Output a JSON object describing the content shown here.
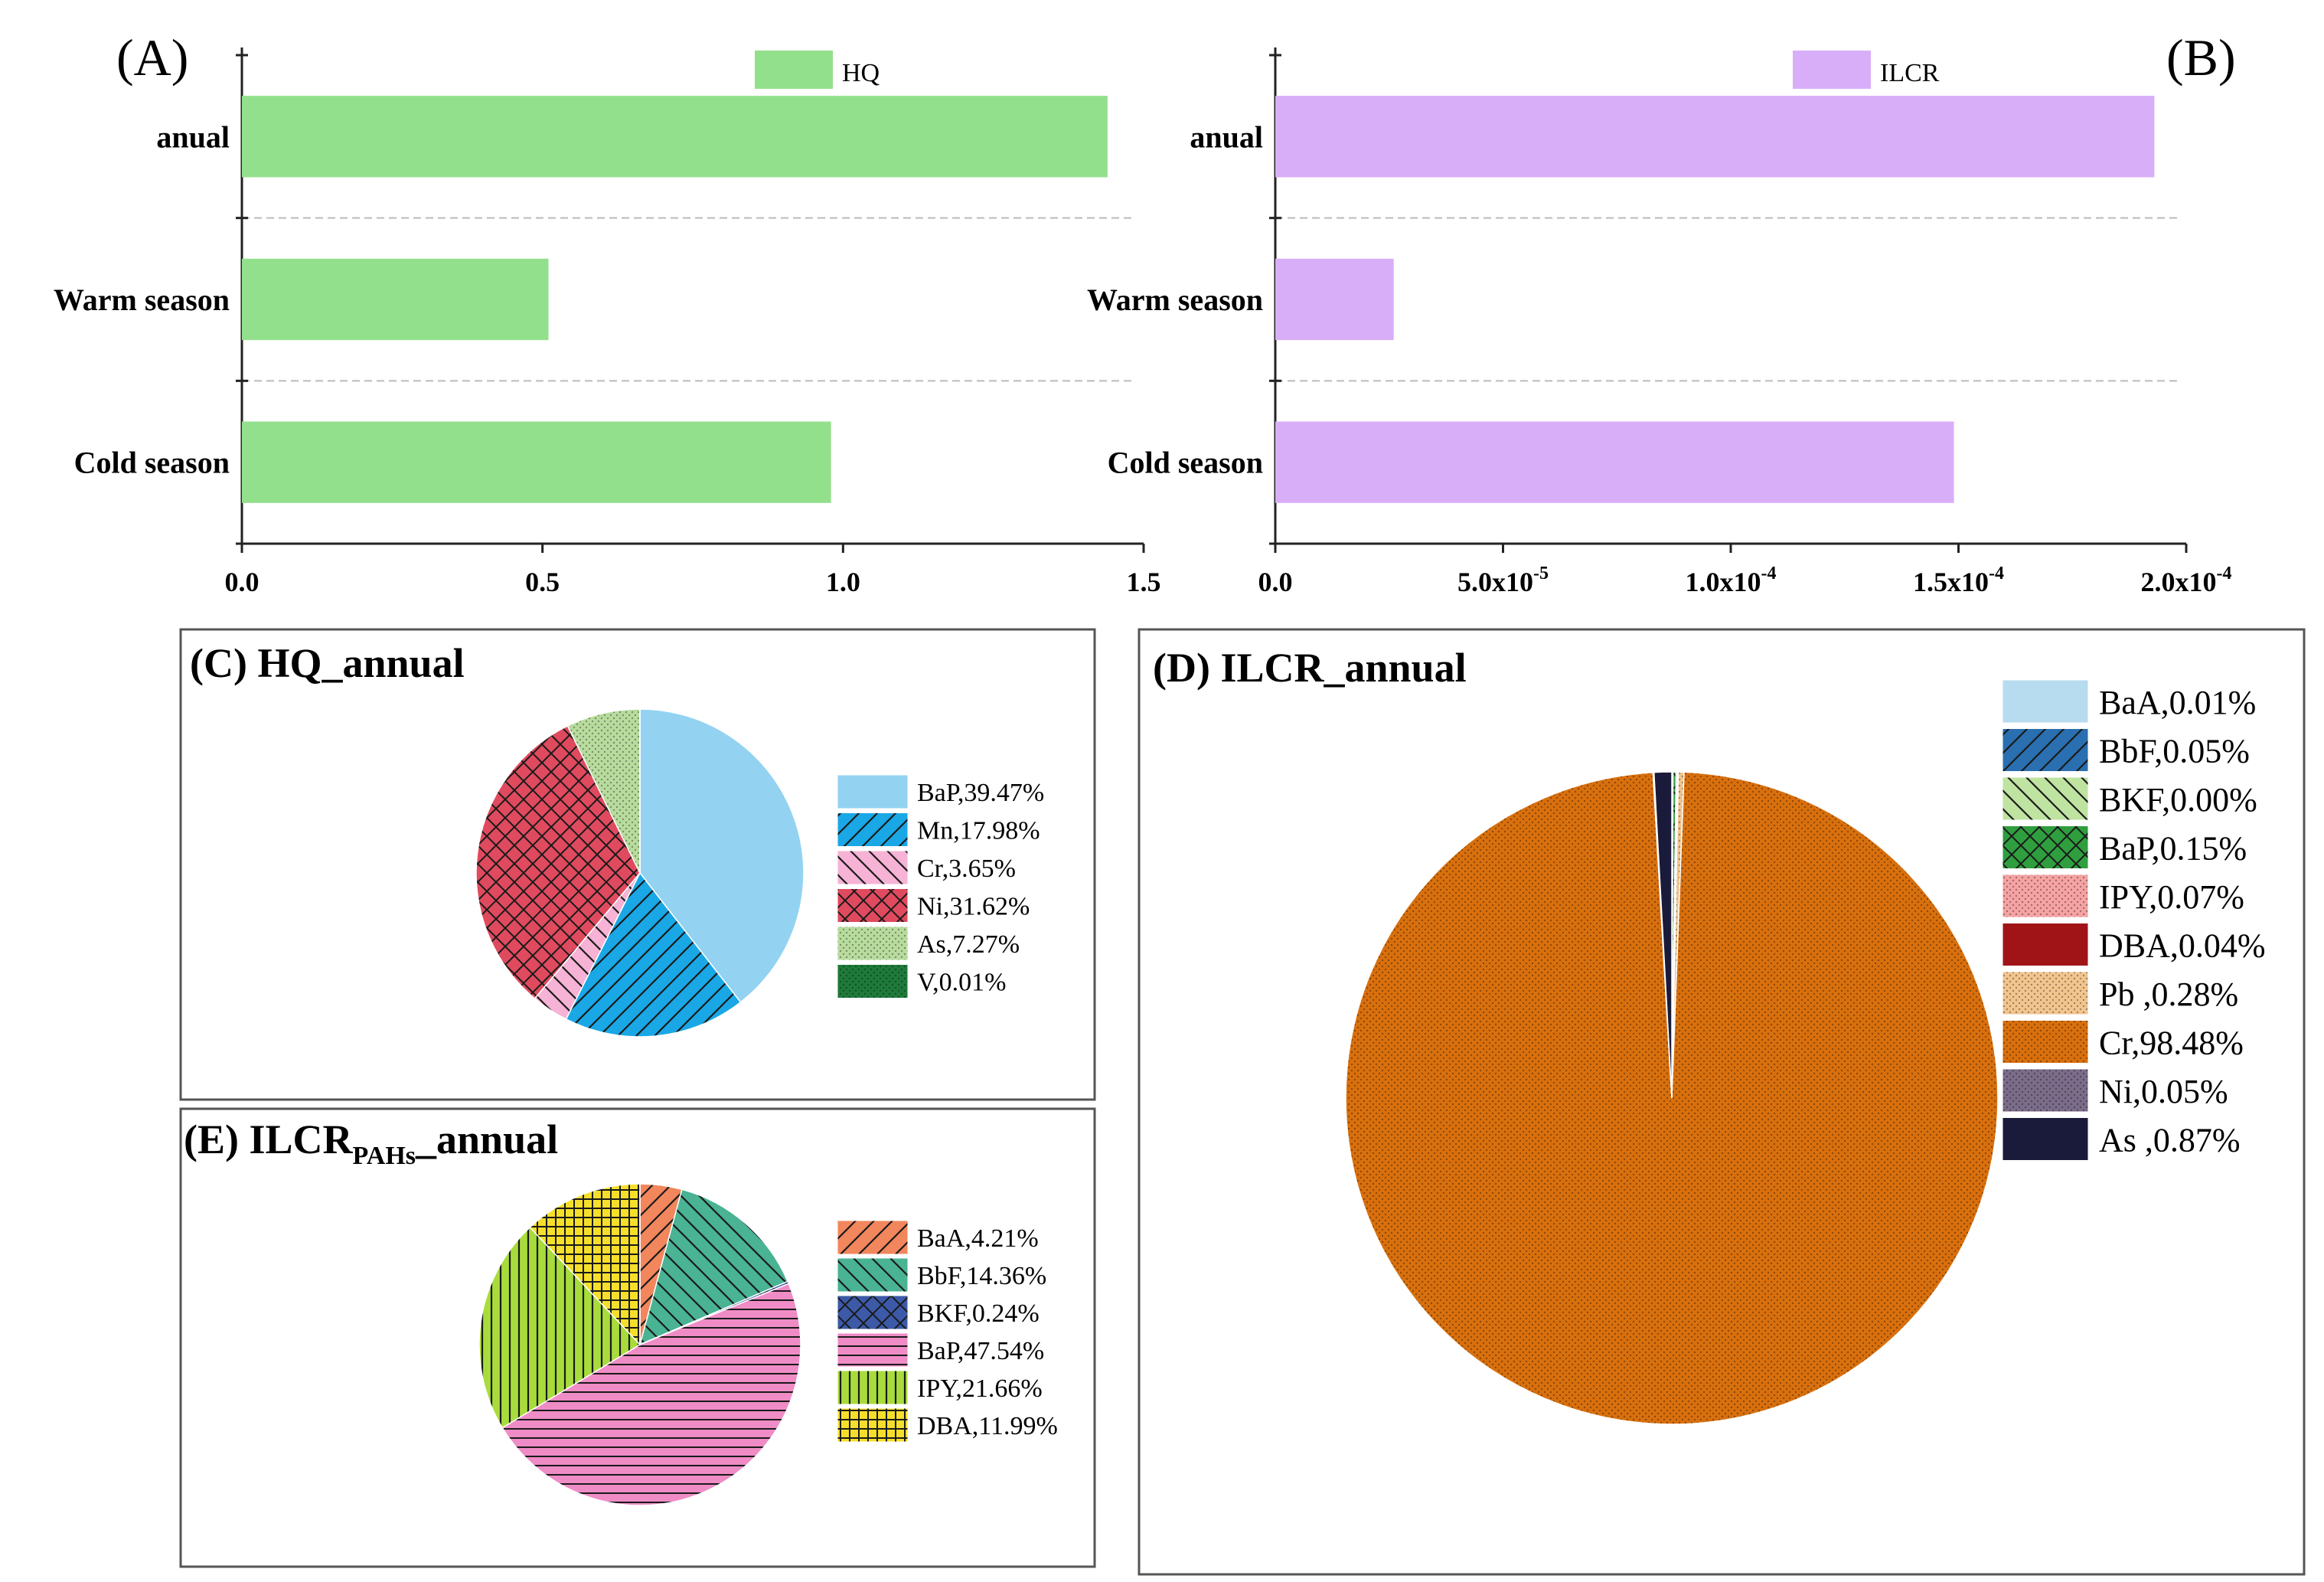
{
  "chart_data": [
    {
      "id": "A",
      "type": "bar",
      "orientation": "horizontal",
      "panel_label": "(A)",
      "legend": "HQ",
      "categories": [
        "anual",
        "Warm season",
        "Cold season"
      ],
      "values": [
        1.44,
        0.51,
        0.98
      ],
      "xlim": [
        0,
        1.5
      ],
      "ticks": [
        0,
        0.5,
        1.0,
        1.5
      ],
      "tick_labels": [
        "0.0",
        "0.5",
        "1.0",
        "1.5"
      ],
      "color": "#93e08c"
    },
    {
      "id": "B",
      "type": "bar",
      "orientation": "horizontal",
      "panel_label": "(B)",
      "legend": "ILCR",
      "categories": [
        "anual",
        "Warm season",
        "Cold season"
      ],
      "values": [
        0.000193,
        2.6e-05,
        0.000149
      ],
      "xlim": [
        0,
        0.0002
      ],
      "ticks": [
        0,
        5e-05,
        0.0001,
        0.00015,
        0.0002
      ],
      "tick_labels": [
        "0.0",
        "5.0x10",
        "1.0x10",
        "1.5x10",
        "2.0x10"
      ],
      "tick_exponents": [
        "",
        "-5",
        "-4",
        "-4",
        "-4"
      ],
      "color": "#d9aef9"
    },
    {
      "id": "C",
      "type": "pie",
      "title": "(C) HQ_annual",
      "slices": [
        {
          "name": "BaP",
          "value": 39.47,
          "label": "BaP,39.47%",
          "color": "#93d3f1",
          "pattern": "none"
        },
        {
          "name": "Mn",
          "value": 17.98,
          "label": "Mn,17.98%",
          "color": "#1aa7e6",
          "pattern": "diag-r"
        },
        {
          "name": "Cr",
          "value": 3.65,
          "label": "Cr,3.65%",
          "color": "#f6b3d5",
          "pattern": "diag-l"
        },
        {
          "name": "Ni",
          "value": 31.62,
          "label": "Ni,31.62%",
          "color": "#e04a5e",
          "pattern": "cross"
        },
        {
          "name": "As",
          "value": 7.27,
          "label": "As,7.27%",
          "color": "#b8dc9e",
          "pattern": "dots"
        },
        {
          "name": "V",
          "value": 0.01,
          "label": "V,0.01%",
          "color": "#1e7a3a",
          "pattern": "dots"
        }
      ]
    },
    {
      "id": "D",
      "type": "pie",
      "title": "(D) ILCR_annual",
      "slices": [
        {
          "name": "BaA",
          "value": 0.01,
          "label": "BaA,0.01%",
          "color": "#b7dbef",
          "pattern": "none"
        },
        {
          "name": "BbF",
          "value": 0.05,
          "label": "BbF,0.05%",
          "color": "#2a6fb0",
          "pattern": "diag-r"
        },
        {
          "name": "BKF",
          "value": 0.0,
          "label": "BKF,0.00%",
          "color": "#bfe3a1",
          "pattern": "diag-l"
        },
        {
          "name": "BaP",
          "value": 0.15,
          "label": "BaP,0.15%",
          "color": "#2f9e3f",
          "pattern": "cross"
        },
        {
          "name": "IPY",
          "value": 0.07,
          "label": "IPY,0.07%",
          "color": "#f6a3a3",
          "pattern": "dots"
        },
        {
          "name": "DBA",
          "value": 0.04,
          "label": "DBA,0.04%",
          "color": "#a01418",
          "pattern": "none"
        },
        {
          "name": "Pb",
          "value": 0.28,
          "label": "Pb ,0.28%",
          "color": "#f3c58e",
          "pattern": "dots"
        },
        {
          "name": "Cr",
          "value": 98.48,
          "label": "Cr,98.48%",
          "color": "#d9700d",
          "pattern": "dots"
        },
        {
          "name": "Ni",
          "value": 0.05,
          "label": "Ni,0.05%",
          "color": "#7b6d8a",
          "pattern": "dots"
        },
        {
          "name": "As",
          "value": 0.87,
          "label": "As ,0.87%",
          "color": "#1a1a3a",
          "pattern": "none"
        }
      ]
    },
    {
      "id": "E",
      "type": "pie",
      "title": "(E) ILCR",
      "title_subscript": "PAHs",
      "title_suffix": "_annual",
      "slices": [
        {
          "name": "BaA",
          "value": 4.21,
          "label": "BaA,4.21%",
          "color": "#f2865c",
          "pattern": "diag-r"
        },
        {
          "name": "BbF",
          "value": 14.36,
          "label": "BbF,14.36%",
          "color": "#49b394",
          "pattern": "diag-l"
        },
        {
          "name": "BKF",
          "value": 0.24,
          "label": "BKF,0.24%",
          "color": "#3d5aa8",
          "pattern": "cross"
        },
        {
          "name": "BaP",
          "value": 47.54,
          "label": "BaP,47.54%",
          "color": "#ef8cc6",
          "pattern": "hlines"
        },
        {
          "name": "IPY",
          "value": 21.66,
          "label": "IPY,21.66%",
          "color": "#a8dc3c",
          "pattern": "vlines"
        },
        {
          "name": "DBA",
          "value": 11.99,
          "label": "DBA,11.99%",
          "color": "#f6df2c",
          "pattern": "grid"
        }
      ]
    }
  ]
}
